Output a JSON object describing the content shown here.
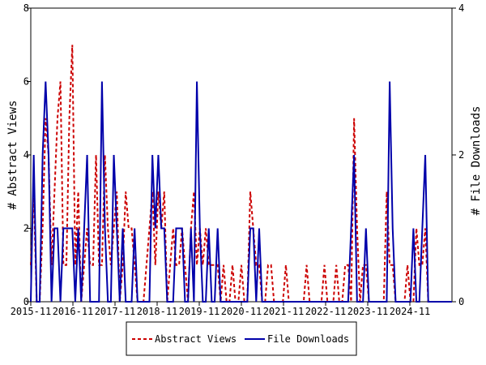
{
  "chart_data": {
    "type": "line",
    "title": "",
    "ylabel_left": "# Abstract Views",
    "ylabel_right": "# File Downloads",
    "x_range": [
      "2015-11",
      "2025-11"
    ],
    "x_ticks": [
      "2015-11",
      "2016-11",
      "2017-11",
      "2018-11",
      "2019-11",
      "2020-11",
      "2021-11",
      "2022-11",
      "2023-11",
      "2024-11"
    ],
    "y_left": {
      "ticks": [
        "0",
        "2",
        "4",
        "6",
        "8"
      ],
      "range": [
        0,
        8
      ]
    },
    "y_right": {
      "ticks": [
        "0",
        "2",
        "4"
      ],
      "range": [
        0,
        4
      ]
    },
    "grid": false,
    "legend_position": "bottom-center",
    "series": [
      {
        "name": "Abstract Views",
        "axis": "left",
        "color": "#cc0000",
        "style": "dashed",
        "values": [
          1,
          3,
          0,
          0,
          2,
          5,
          4,
          1,
          3,
          5,
          6,
          1,
          1,
          5,
          7,
          1,
          3,
          0,
          1,
          2,
          1,
          1,
          4,
          1,
          1,
          4,
          2,
          1,
          2,
          3,
          0,
          1,
          3,
          2,
          2,
          1,
          0,
          0,
          0,
          1,
          2,
          3,
          1,
          3,
          2,
          3,
          0,
          1,
          2,
          1,
          1,
          2,
          1,
          0,
          2,
          3,
          1,
          2,
          1,
          2,
          1,
          1,
          1,
          1,
          0,
          1,
          0,
          0,
          1,
          0,
          0,
          1,
          0,
          0,
          3,
          2,
          1,
          1,
          0,
          0,
          1,
          1,
          0,
          0,
          0,
          0,
          1,
          0,
          0,
          0,
          0,
          0,
          0,
          1,
          0,
          0,
          0,
          0,
          0,
          1,
          0,
          0,
          0,
          1,
          0,
          0,
          1,
          1,
          0,
          5,
          2,
          0,
          1,
          1,
          0,
          0,
          0,
          0,
          0,
          0,
          3,
          1,
          1,
          0,
          0,
          0,
          0,
          1,
          0,
          0,
          2,
          1,
          1,
          2,
          0,
          0,
          0,
          0,
          0,
          0,
          0,
          0,
          0
        ]
      },
      {
        "name": "File Downloads",
        "axis": "right",
        "color": "#0000aa",
        "style": "solid",
        "values": [
          0,
          2,
          0,
          0,
          2,
          3,
          2,
          0,
          1,
          1,
          0,
          1,
          1,
          1,
          1,
          0,
          1,
          0,
          1,
          2,
          0,
          0,
          0,
          0,
          3,
          1,
          0,
          0,
          2,
          1,
          0,
          1,
          0,
          0,
          0,
          1,
          0,
          0,
          0,
          0,
          0,
          2,
          1,
          2,
          1,
          1,
          0,
          0,
          0,
          1,
          1,
          1,
          0,
          0,
          1,
          0,
          3,
          1,
          0,
          0,
          1,
          0,
          0,
          1,
          0,
          0,
          0,
          0,
          0,
          0,
          0,
          0,
          0,
          0,
          1,
          1,
          0,
          1,
          0,
          0,
          0,
          0,
          0,
          0,
          0,
          0,
          0,
          0,
          0,
          0,
          0,
          0,
          0,
          0,
          0,
          0,
          0,
          0,
          0,
          0,
          0,
          0,
          0,
          0,
          0,
          0,
          0,
          0,
          1,
          2,
          0,
          0,
          0,
          1,
          0,
          0,
          0,
          0,
          0,
          0,
          0,
          3,
          1,
          0,
          0,
          0,
          0,
          0,
          0,
          1,
          0,
          0,
          1,
          2,
          0,
          0,
          0,
          0,
          0,
          0,
          0,
          0,
          0
        ]
      }
    ]
  }
}
